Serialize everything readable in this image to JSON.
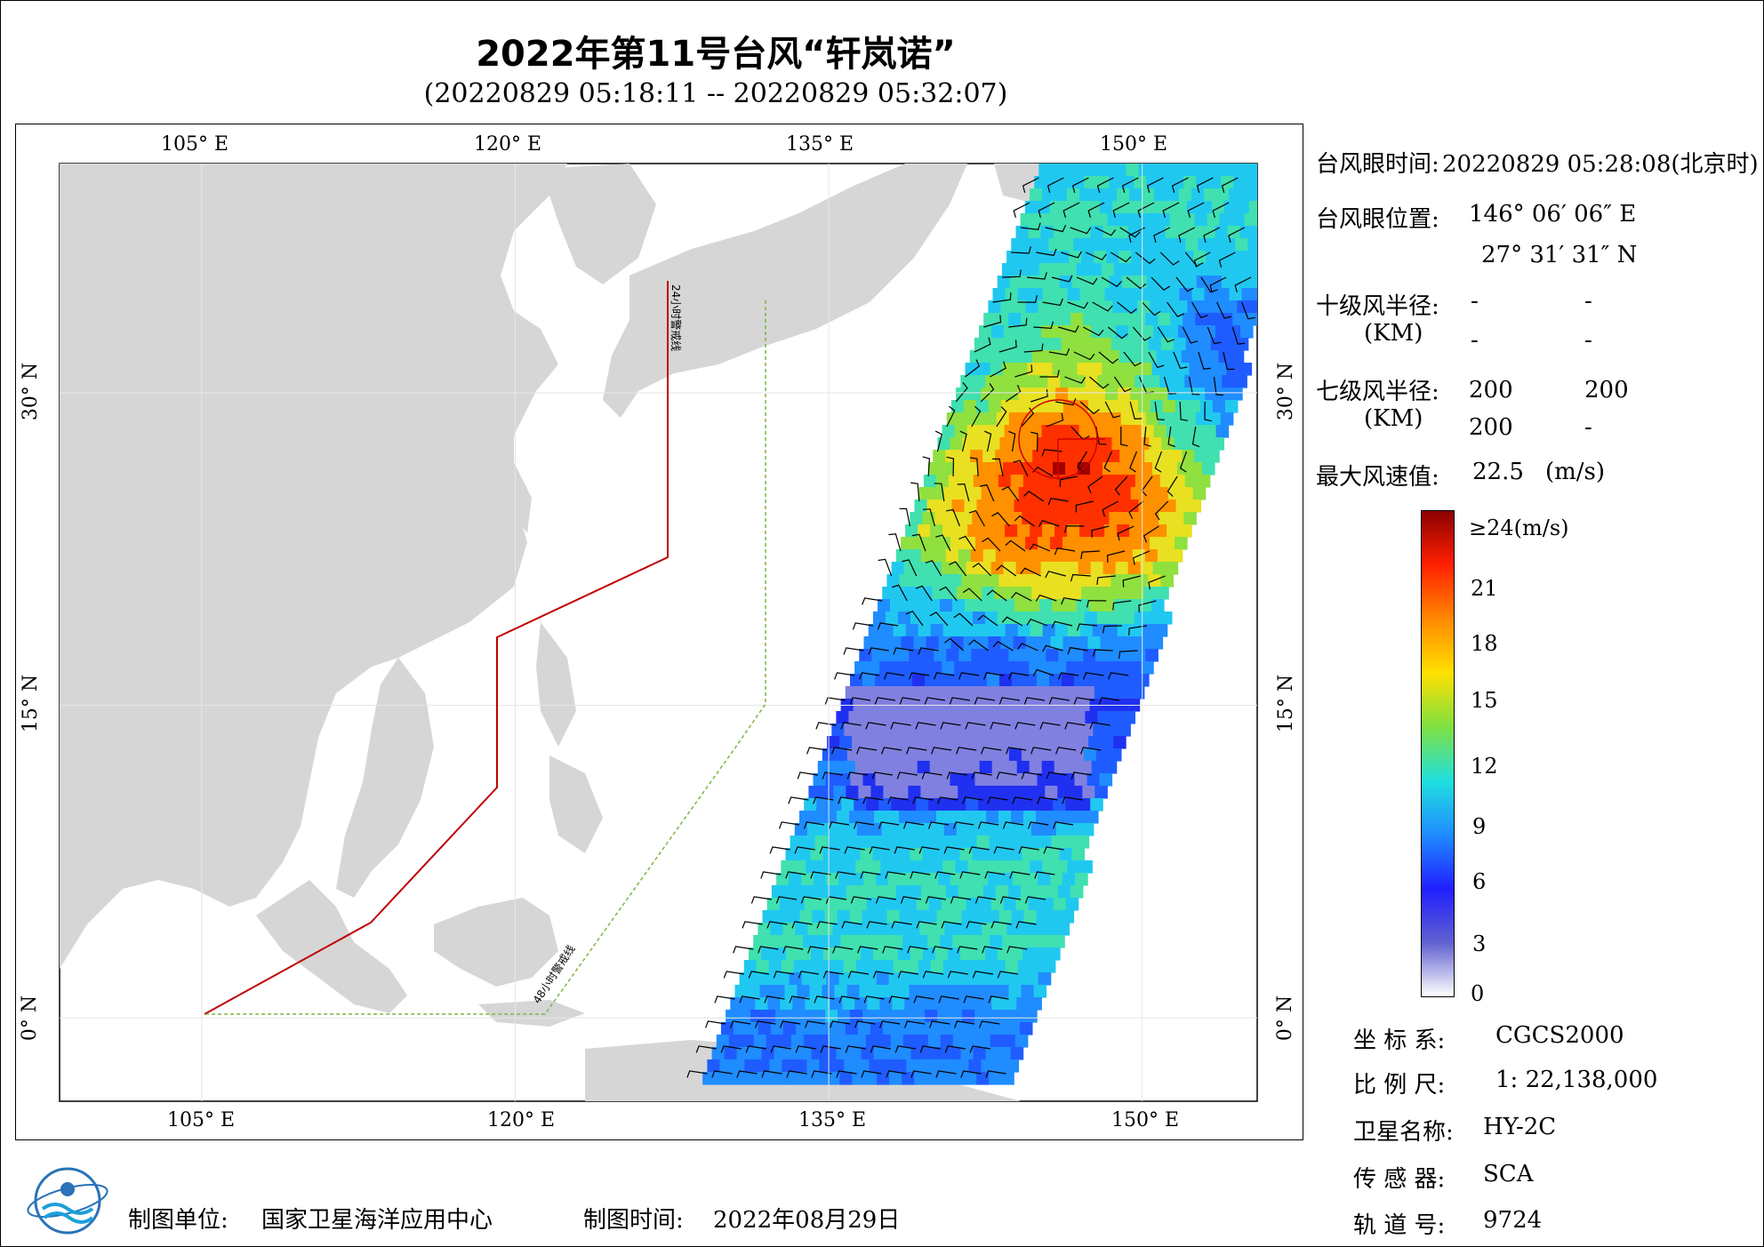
{
  "title": "2022年第11号台风“轩岚诺”",
  "subtitle": "(20220829 05:18:11 -- 20220829 05:32:07)",
  "axes": {
    "lon_top": [
      "105° E",
      "120° E",
      "135° E",
      "150° E"
    ],
    "lon_bottom": [
      "105° E",
      "120° E",
      "135° E",
      "150° E"
    ],
    "lat_left": [
      "30° N",
      "15° N",
      "0° N"
    ],
    "lat_right": [
      "30° N",
      "15° N",
      "0° N"
    ],
    "lon_values": [
      105,
      120,
      135,
      150
    ],
    "lat_values": [
      30,
      15,
      0
    ]
  },
  "map": {
    "extent": {
      "lon_min": 98.2,
      "lon_max": 155.5,
      "lat_min": -4,
      "lat_max": 41
    },
    "line_24h_label": "24小时警戒线",
    "line_48h_label": "48小时警戒线",
    "line_24h_color": "#c00000",
    "line_48h_color": "#7ab640",
    "typhoon_eye": {
      "lon": 146.1,
      "lat": 27.5
    }
  },
  "info": {
    "eye_time_label": "台风眼时间:",
    "eye_time_value": "20220829 05:28:08(北京时)",
    "eye_pos_label": "台风眼位置:",
    "eye_lon": "146° 06′ 06″ E",
    "eye_lat": "27° 31′ 31″ N",
    "r10_label": "十级风半径:",
    "r10_unit": "(KM)",
    "r10_values": [
      "-",
      "-",
      "-",
      "-"
    ],
    "r7_label": "七级风半径:",
    "r7_unit": "(KM)",
    "r7_values": [
      "200",
      "200",
      "200",
      "-"
    ],
    "max_wind_label": "最大风速值:",
    "max_wind_value": "22.5",
    "max_wind_unit": "(m/s)"
  },
  "colorbar": {
    "labels": [
      "≥24(m/s)",
      "21",
      "18",
      "15",
      "12",
      "9",
      "6",
      "3",
      "0"
    ],
    "stops": [
      "#8b0000",
      "#ff2000",
      "#ff8800",
      "#ffe000",
      "#80e040",
      "#20e0e0",
      "#1f8cff",
      "#2020ff",
      "#6060d0",
      "#ffffff"
    ]
  },
  "meta": {
    "crs_label": "坐 标 系:",
    "crs_value": "CGCS2000",
    "scale_label": "比 例 尺:",
    "scale_value": "1: 22,138,000",
    "sat_label": "卫星名称:",
    "sat_value": "HY-2C",
    "sensor_label": "传 感 器:",
    "sensor_value": "SCA",
    "orbit_label": "轨 道 号:",
    "orbit_value": "9724"
  },
  "footer": {
    "org_label": "制图单位:",
    "org_value": "国家卫星海洋应用中心",
    "date_label": "制图时间:",
    "date_value": "2022年08月29日"
  }
}
